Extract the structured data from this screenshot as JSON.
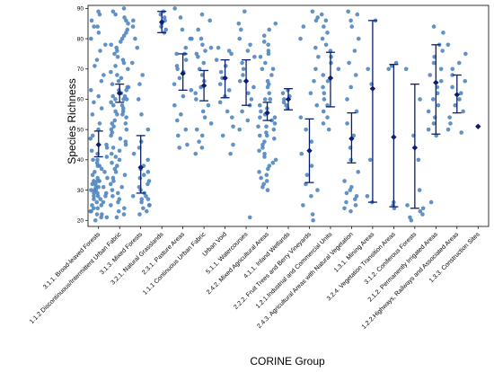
{
  "chart_data": {
    "type": "scatter",
    "xlabel": "CORINE Group",
    "ylabel": "Species Richness",
    "ylim": [
      18,
      91
    ],
    "yticks": [
      20,
      30,
      40,
      50,
      60,
      70,
      80,
      90
    ],
    "grid": false,
    "colors": {
      "points": "#4f86bf",
      "mean": "#0a1f6e"
    },
    "categories": [
      "3.1.1. Broad-leaved Forests",
      "1.1.2 Discontinuous/Intermittent Urban Fabric",
      "3.1.3. Mixed Forests",
      "3.2.1. Natural Grasslands",
      "2.3.1. Pasture Areas",
      "1.1.1 Continuous Urban Fabric",
      "Urban Void",
      "5.1.1. Watercourses",
      "2.4.2. Mixed Agricultural Areas",
      "4.1.1. Inland Wetlands",
      "2.2.2. Fruit Trees and Berry Vineyards",
      "1.2.1.Industrial and Commercial Units",
      "2.4.3. Agricultural Areas with Natural Vegetation",
      "1.3.1. Mining Areas",
      "3.2.4. Vegetation Transition Areas",
      "3.1.2. Coniferous Forests",
      "2.1.2. Permanently Irrigated Areas",
      "1.2.2.Highways, Railways and Associated Areas",
      "1.3.3. Construction Sites"
    ],
    "summary": [
      {
        "mean": 45,
        "low": 41,
        "high": 49.5
      },
      {
        "mean": 62,
        "low": 59,
        "high": 65
      },
      {
        "mean": 37.5,
        "low": 29,
        "high": 48
      },
      {
        "mean": 85.5,
        "low": 82,
        "high": 89
      },
      {
        "mean": 68.5,
        "low": 63,
        "high": 75
      },
      {
        "mean": 64.5,
        "low": 59.5,
        "high": 69.5
      },
      {
        "mean": 67,
        "low": 60.5,
        "high": 73
      },
      {
        "mean": 66,
        "low": 58,
        "high": 73
      },
      {
        "mean": 55.5,
        "low": 53,
        "high": 59
      },
      {
        "mean": 60,
        "low": 56.5,
        "high": 63.5
      },
      {
        "mean": 43,
        "low": 32.5,
        "high": 53.5
      },
      {
        "mean": 67,
        "low": 57.5,
        "high": 75.5
      },
      {
        "mean": 47,
        "low": 39,
        "high": 55.5
      },
      {
        "mean": 63.5,
        "low": 26,
        "high": 86
      },
      {
        "mean": 47.5,
        "low": 24.5,
        "high": 71.5
      },
      {
        "mean": 44,
        "low": 24,
        "high": 65
      },
      {
        "mean": 65.5,
        "low": 48.5,
        "high": 78
      },
      {
        "mean": 61.5,
        "low": 55.5,
        "high": 68
      },
      {
        "mean": 51,
        "low": 51,
        "high": 51
      }
    ],
    "points": [
      [
        89,
        88,
        86,
        84,
        84,
        82,
        80,
        78,
        76,
        73,
        71,
        68,
        66,
        63,
        61,
        59,
        57,
        55,
        52,
        50,
        48,
        47,
        45,
        44,
        43,
        42,
        41,
        40,
        39,
        38,
        37,
        36,
        35,
        34,
        34,
        33,
        33,
        32,
        32,
        31,
        31,
        30,
        30,
        29,
        29,
        28,
        28,
        27,
        27,
        26,
        26,
        25,
        25,
        24,
        24,
        23,
        23,
        22,
        22,
        21,
        21,
        20,
        33,
        31,
        29,
        36,
        38,
        40,
        30,
        28
      ],
      [
        90,
        89,
        88,
        87,
        86,
        85,
        83,
        82,
        81,
        80,
        79,
        78,
        77,
        76,
        75,
        74,
        73,
        72,
        71,
        70,
        69,
        68,
        67,
        66,
        65,
        64,
        63,
        63,
        62,
        62,
        61,
        61,
        60,
        60,
        59,
        58,
        57,
        56,
        55,
        54,
        53,
        52,
        51,
        50,
        49,
        48,
        47,
        46,
        45,
        44,
        43,
        42,
        41,
        40,
        39,
        38,
        37,
        36,
        35,
        34,
        33,
        32,
        31,
        30,
        29,
        28,
        27,
        26,
        25,
        24,
        23,
        22,
        21,
        64,
        60,
        58,
        56,
        55,
        52,
        50
      ],
      [
        86,
        84,
        80,
        77,
        72,
        68,
        65,
        60,
        55,
        50,
        46,
        44,
        42,
        40,
        38,
        37,
        36,
        35,
        34,
        33,
        32,
        31,
        30,
        29,
        28,
        27,
        26,
        25,
        24,
        23,
        22,
        28,
        25,
        27
      ],
      [
        89,
        88,
        87,
        86,
        85,
        84,
        83,
        82
      ],
      [
        90,
        87,
        83,
        80,
        77,
        75,
        73,
        71,
        70,
        69,
        67,
        65,
        63,
        61,
        58,
        55,
        53,
        50,
        48,
        45,
        44,
        80,
        75
      ],
      [
        88,
        86,
        83,
        80,
        78,
        77,
        76,
        75,
        74,
        72,
        70,
        68,
        66,
        64,
        62,
        60,
        58,
        56,
        54,
        52,
        50,
        48,
        46,
        44,
        42
      ],
      [
        77,
        76,
        75,
        73,
        71,
        69,
        67,
        65,
        63,
        61,
        59,
        56,
        54,
        51,
        48,
        45,
        42
      ],
      [
        89,
        85,
        83,
        80,
        78,
        76,
        74,
        72,
        70,
        68,
        66,
        64,
        62,
        60,
        58,
        56,
        53,
        50,
        21
      ],
      [
        85,
        83,
        81,
        79,
        78,
        76,
        74,
        72,
        70,
        68,
        66,
        64,
        62,
        60,
        58,
        56,
        55,
        54,
        53,
        52,
        51,
        50,
        49,
        48,
        47,
        46,
        45,
        44,
        43,
        42,
        41,
        40,
        39,
        38,
        37,
        36,
        35,
        34,
        33,
        32,
        31,
        30,
        75,
        70,
        65,
        60,
        57,
        54,
        51,
        48
      ],
      [
        63,
        62,
        61,
        60,
        59,
        58,
        57
      ],
      [
        89,
        87,
        86,
        84,
        80,
        77,
        74,
        70,
        66,
        62,
        58,
        54,
        50,
        46,
        42,
        38,
        35,
        32,
        30,
        28,
        25,
        22,
        20
      ],
      [
        88,
        86,
        84,
        82,
        80,
        78,
        76,
        74,
        72,
        70,
        68,
        66,
        64,
        62,
        60,
        58,
        56,
        54,
        52,
        50
      ],
      [
        89,
        88,
        86,
        84,
        80,
        76,
        72,
        68,
        64,
        60,
        56,
        52,
        48,
        44,
        40,
        36,
        33,
        31,
        30,
        29,
        28,
        27,
        26,
        25,
        24,
        23
      ],
      [
        86,
        70,
        65,
        40,
        28,
        26
      ],
      [
        72,
        71,
        70,
        26,
        25,
        24
      ],
      [
        70,
        60,
        48,
        40,
        30,
        25,
        24,
        23,
        22,
        21,
        20
      ],
      [
        84,
        82,
        78,
        76,
        74,
        72,
        70,
        68,
        66,
        64,
        62,
        60,
        58,
        56,
        54,
        52,
        50,
        48,
        26
      ],
      [
        78,
        75,
        72,
        70,
        68,
        66,
        64,
        62,
        60,
        58,
        56,
        54,
        52,
        50,
        49
      ],
      [
        51
      ]
    ]
  }
}
